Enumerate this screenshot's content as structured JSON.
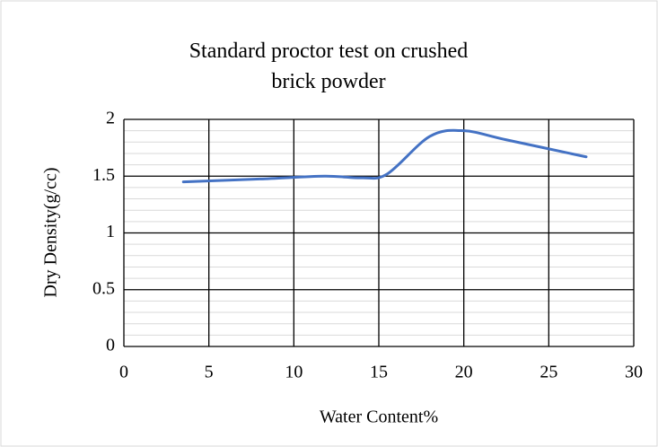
{
  "chart_data": {
    "type": "line",
    "title": "Standard proctor test on crushed brick powder",
    "x_label": "Water Content%",
    "y_label": "Dry Density(g/cc)",
    "x": [
      3.5,
      8,
      11.8,
      14,
      15.5,
      18,
      20,
      22.5,
      27.2
    ],
    "series": [
      {
        "name": "Dry Density",
        "color": "#4472c4",
        "values": [
          1.45,
          1.475,
          1.5,
          1.485,
          1.52,
          1.85,
          1.9,
          1.82,
          1.67
        ]
      }
    ],
    "xlim": [
      0,
      30
    ],
    "xticks": [
      0,
      5,
      10,
      15,
      20,
      25,
      30
    ],
    "ylim": [
      0,
      2
    ],
    "yticks": [
      0,
      {
        "value": 0.5,
        "label": "0.5"
      },
      1,
      {
        "value": 1.5,
        "label": "1.5"
      },
      2
    ],
    "grid": true,
    "minor_grid": true,
    "smooth": true
  }
}
